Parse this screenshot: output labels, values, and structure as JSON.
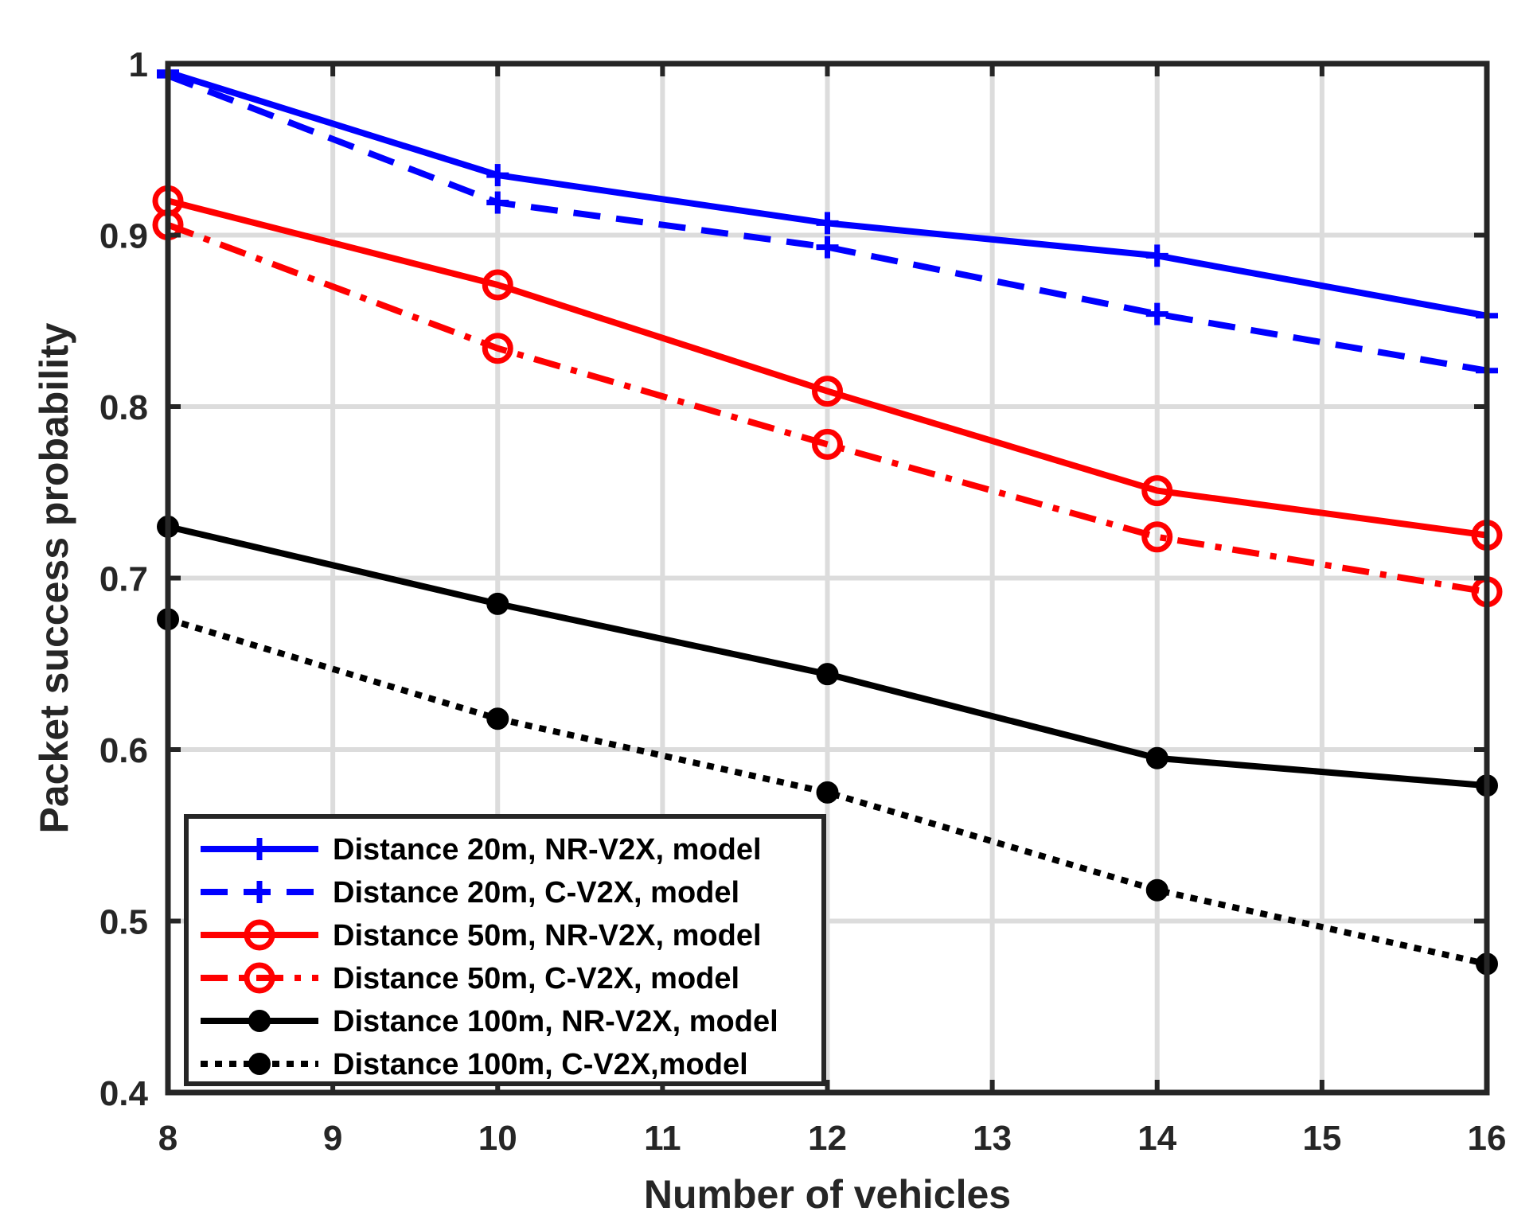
{
  "chart_data": {
    "type": "line",
    "title": "",
    "xlabel": "Number of vehicles",
    "ylabel": "Packet success probability",
    "xlim": [
      8,
      16
    ],
    "ylim": [
      0.4,
      1
    ],
    "xticks": [
      8,
      9,
      10,
      11,
      12,
      13,
      14,
      15,
      16
    ],
    "yticks": [
      0.4,
      0.5,
      0.6,
      0.7,
      0.8,
      0.9,
      1
    ],
    "ytick_labels": [
      "0.4",
      "0.5",
      "0.6",
      "0.7",
      "0.8",
      "0.9",
      "1"
    ],
    "grid": true,
    "legend_location": "bottom-left",
    "x": [
      8,
      10,
      12,
      14,
      16
    ],
    "series": [
      {
        "name": "Distance 20m, NR-V2X, model",
        "values": [
          0.995,
          0.935,
          0.907,
          0.888,
          0.853
        ],
        "color": "#0000ff",
        "line": "solid",
        "marker": "plus"
      },
      {
        "name": "Distance 20m, C-V2X, model",
        "values": [
          0.993,
          0.919,
          0.893,
          0.854,
          0.821
        ],
        "color": "#0000ff",
        "line": "dashed",
        "marker": "plus"
      },
      {
        "name": "Distance 50m, NR-V2X, model",
        "values": [
          0.92,
          0.871,
          0.809,
          0.751,
          0.725
        ],
        "color": "#ff0000",
        "line": "solid",
        "marker": "circle"
      },
      {
        "name": "Distance 50m, C-V2X, model",
        "values": [
          0.906,
          0.834,
          0.778,
          0.724,
          0.692
        ],
        "color": "#ff0000",
        "line": "dashdot",
        "marker": "circle"
      },
      {
        "name": "Distance 100m, NR-V2X, model",
        "values": [
          0.73,
          0.685,
          0.644,
          0.595,
          0.579
        ],
        "color": "#000000",
        "line": "solid",
        "marker": "dot"
      },
      {
        "name": "Distance 100m, C-V2X,model",
        "values": [
          0.676,
          0.618,
          0.575,
          0.518,
          0.475
        ],
        "color": "#000000",
        "line": "dotted",
        "marker": "dot"
      }
    ]
  }
}
